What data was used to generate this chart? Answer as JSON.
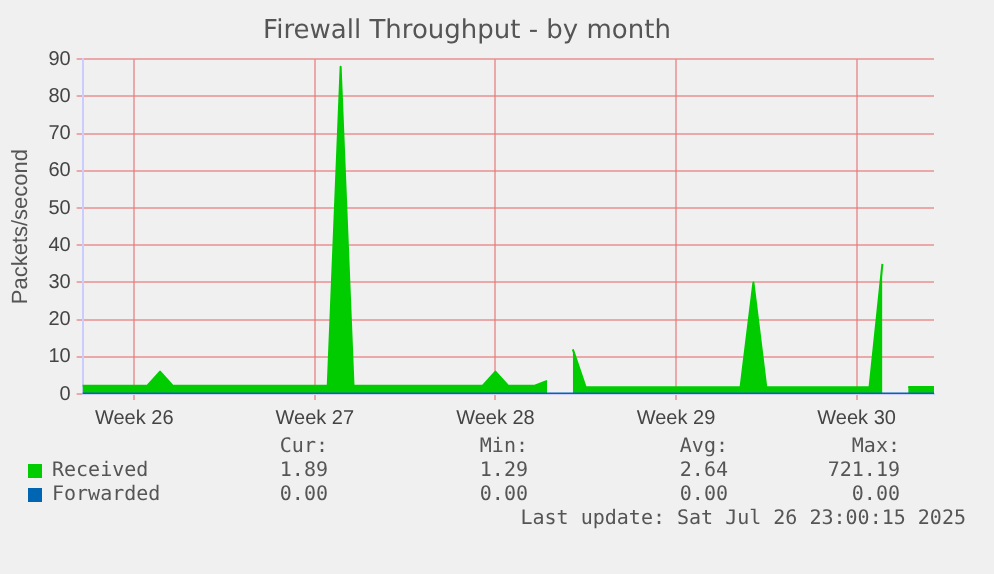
{
  "chart_data": {
    "type": "area",
    "title": "Firewall Throughput - by month",
    "ylabel": "Packets/second",
    "categories": [
      null,
      null,
      null,
      null,
      "Week 26",
      null,
      null,
      null,
      null,
      null,
      null,
      null,
      null,
      null,
      null,
      null,
      null,
      null,
      "Week 27",
      null,
      null,
      null,
      null,
      null,
      null,
      null,
      null,
      null,
      null,
      null,
      null,
      null,
      "Week 28",
      null,
      null,
      null,
      null,
      null,
      null,
      null,
      null,
      null,
      null,
      null,
      null,
      null,
      "Week 29",
      null,
      null,
      null,
      null,
      null,
      null,
      null,
      null,
      null,
      null,
      null,
      null,
      null,
      "Week 30",
      null,
      null,
      null,
      null,
      null,
      null
    ],
    "ylim": [
      0,
      90
    ],
    "yticks": [
      0,
      10,
      20,
      30,
      40,
      50,
      60,
      70,
      80,
      90
    ],
    "grid": true,
    "legend": "bottom",
    "series": [
      {
        "name": "Received",
        "color": "#00cc00",
        "values": [
          2.2,
          2.2,
          2.2,
          2.2,
          2.2,
          2.2,
          6,
          2.2,
          2.2,
          2.2,
          2.2,
          2.2,
          2.2,
          2.2,
          2.2,
          2.2,
          2.2,
          2.2,
          2.2,
          2.2,
          88,
          2.2,
          2.2,
          2.2,
          2.2,
          2.2,
          2.2,
          2.2,
          2.2,
          2.2,
          2.2,
          2.2,
          6,
          2.2,
          2.2,
          2.2,
          3.5,
          null,
          12,
          1.8,
          1.8,
          1.8,
          1.8,
          1.8,
          1.8,
          1.8,
          1.8,
          1.8,
          1.8,
          1.8,
          1.8,
          1.8,
          30,
          1.8,
          1.8,
          1.8,
          1.8,
          1.8,
          1.8,
          1.8,
          1.8,
          1.8,
          35,
          null,
          1.9,
          1.9,
          1.9
        ]
      },
      {
        "name": "Forwarded",
        "type": "line",
        "color": "#0066b3",
        "values": [
          0,
          0,
          0,
          0,
          0,
          0,
          0,
          0,
          0,
          0,
          0,
          0,
          0,
          0,
          0,
          0,
          0,
          0,
          0,
          0,
          0,
          0,
          0,
          0,
          0,
          0,
          0,
          0,
          0,
          0,
          0,
          0,
          0,
          0,
          0,
          0,
          0,
          0,
          0,
          0,
          0,
          0,
          0,
          0,
          0,
          0,
          0,
          0,
          0,
          0,
          0,
          0,
          0,
          0,
          0,
          0,
          0,
          0,
          0,
          0,
          0,
          0,
          0,
          0,
          0,
          0,
          0
        ]
      }
    ],
    "annotations": [
      "Cur:",
      "Min:",
      "Avg:",
      "Max:",
      "1.89",
      "1.29",
      "2.64",
      "721.19",
      "0.00",
      "0.00",
      "0.00",
      "0.00",
      "Last update: Sat Jul 26 23:00:15 2025"
    ]
  }
}
